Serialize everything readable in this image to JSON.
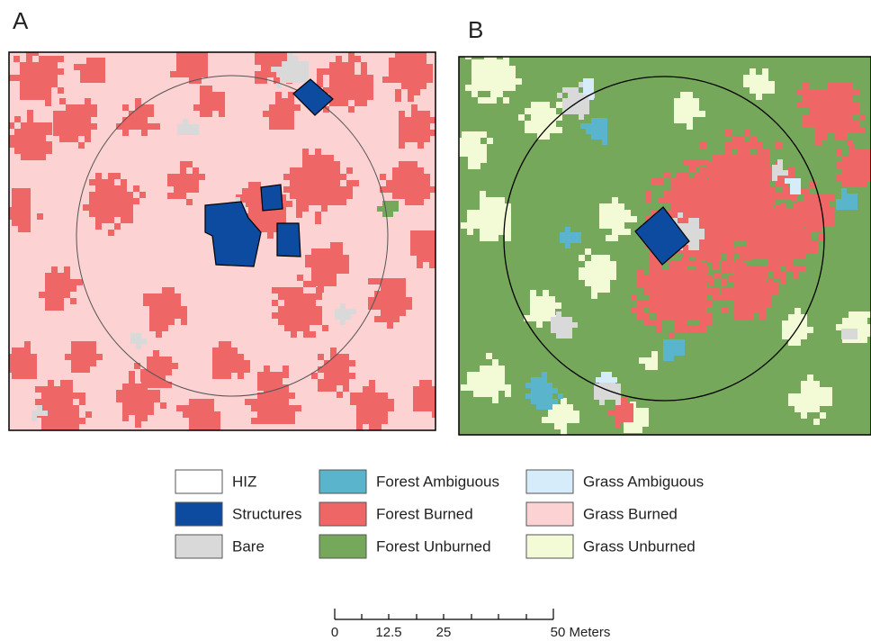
{
  "panels": [
    {
      "label": "A"
    },
    {
      "label": "B"
    }
  ],
  "legend": {
    "items": [
      {
        "label": "HIZ",
        "color": "#ffffff"
      },
      {
        "label": "Structures",
        "color": "#0d4ba0"
      },
      {
        "label": "Bare",
        "color": "#d9d9d9"
      },
      {
        "label": "Forest Ambiguous",
        "color": "#5ab4cc"
      },
      {
        "label": "Forest Burned",
        "color": "#ee6666"
      },
      {
        "label": "Forest Unburned",
        "color": "#76a85c"
      },
      {
        "label": "Grass Ambiguous",
        "color": "#d6ecfa"
      },
      {
        "label": "Grass Burned",
        "color": "#fcd2d2"
      },
      {
        "label": "Grass Unburned",
        "color": "#f2fbd6"
      }
    ]
  },
  "scale_bar": {
    "labels": [
      "0",
      "12.5",
      "25",
      "50 Meters"
    ]
  }
}
